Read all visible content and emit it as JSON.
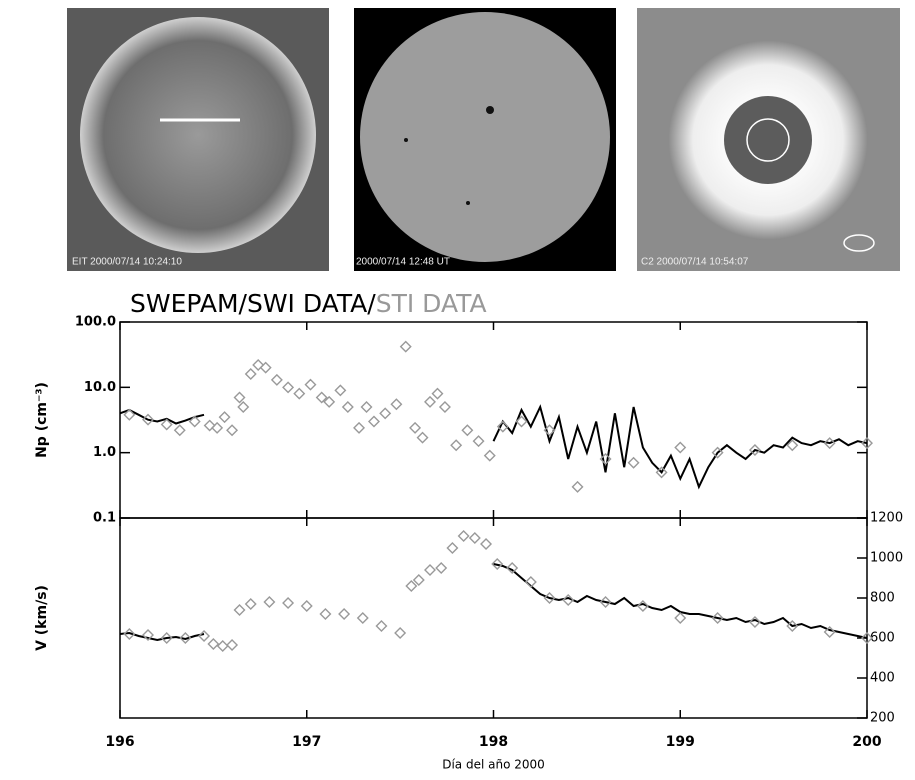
{
  "images": [
    {
      "caption": "EIT 2000/07/14 10:24:10"
    },
    {
      "caption": "2000/07/14 12:48 UT"
    },
    {
      "caption": "C2 2000/07/14 10:54:07"
    }
  ],
  "chart_data": [
    {
      "type": "line",
      "y_label": "Np (cm⁻³)",
      "log": true,
      "xlim": [
        196,
        200
      ],
      "xticks": [
        196,
        197,
        198,
        199,
        200
      ],
      "ylim": [
        0.1,
        100
      ],
      "yticks": [
        0.1,
        {
          "value": 1,
          "label": "1.0"
        },
        {
          "value": 10,
          "label": "10.0"
        },
        {
          "value": 100,
          "label": "100.0"
        }
      ],
      "series": [
        {
          "name": "SWEPAM/SWI DATA/",
          "color": "#000000",
          "style": "line",
          "x": [
            196.0,
            196.05,
            196.1,
            196.15,
            196.2,
            196.25,
            196.3,
            196.35,
            196.4,
            196.45,
            196.5,
            198.0,
            198.05,
            198.1,
            198.15,
            198.2,
            198.25,
            198.3,
            198.35,
            198.4,
            198.45,
            198.5,
            198.55,
            198.6,
            198.65,
            198.7,
            198.75,
            198.8,
            198.85,
            198.9,
            198.95,
            199.0,
            199.05,
            199.1,
            199.15,
            199.2,
            199.25,
            199.3,
            199.35,
            199.4,
            199.45,
            199.5,
            199.55,
            199.6,
            199.65,
            199.7,
            199.75,
            199.8,
            199.85,
            199.9,
            199.95,
            200.0
          ],
          "values": [
            4,
            4.5,
            3.8,
            3.2,
            3,
            3.3,
            2.8,
            3.1,
            3.5,
            3.8,
            null,
            1.5,
            3,
            2,
            4.5,
            2.5,
            5,
            1.5,
            3.5,
            0.8,
            2.5,
            1,
            3,
            0.5,
            4,
            0.6,
            5,
            1.2,
            0.7,
            0.5,
            0.9,
            0.4,
            0.8,
            0.3,
            0.6,
            1,
            1.3,
            1,
            0.8,
            1.1,
            1.0,
            1.3,
            1.2,
            1.7,
            1.4,
            1.3,
            1.5,
            1.4,
            1.6,
            1.3,
            1.5,
            1.4
          ]
        },
        {
          "name": "STI DATA",
          "color": "#999999",
          "style": "diamond",
          "x": [
            196.05,
            196.15,
            196.25,
            196.32,
            196.4,
            196.48,
            196.52,
            196.56,
            196.6,
            196.64,
            196.66,
            196.7,
            196.74,
            196.78,
            196.84,
            196.9,
            196.96,
            197.02,
            197.08,
            197.12,
            197.18,
            197.22,
            197.28,
            197.32,
            197.36,
            197.42,
            197.48,
            197.53,
            197.58,
            197.62,
            197.66,
            197.7,
            197.74,
            197.8,
            197.86,
            197.92,
            197.98,
            198.05,
            198.15,
            198.3,
            198.45,
            198.6,
            198.75,
            198.9,
            199.0,
            199.2,
            199.4,
            199.6,
            199.8,
            200.0
          ],
          "values": [
            3.8,
            3.2,
            2.7,
            2.2,
            3.0,
            2.6,
            2.4,
            3.5,
            2.2,
            7,
            5,
            16,
            22,
            20,
            13,
            10,
            8,
            11,
            7,
            6,
            9,
            5,
            2.4,
            5,
            3,
            4,
            5.5,
            42,
            2.4,
            1.7,
            6,
            8,
            5,
            1.3,
            2.2,
            1.5,
            0.9,
            2.5,
            3,
            2.2,
            0.3,
            0.8,
            0.7,
            0.5,
            1.2,
            1.0,
            1.1,
            1.3,
            1.4,
            1.4
          ]
        }
      ]
    },
    {
      "type": "line",
      "y_label": "V (km/s)",
      "x_label": "Día del año 2000",
      "xlim": [
        196,
        200
      ],
      "xticks": [
        196,
        197,
        198,
        199,
        200
      ],
      "y2lim": [
        200,
        1200
      ],
      "y2ticks": [
        200,
        400,
        600,
        800,
        1000,
        1200
      ],
      "series": [
        {
          "color": "#000000",
          "style": "line",
          "axis": "y2",
          "x": [
            196.0,
            196.05,
            196.1,
            196.15,
            196.2,
            196.25,
            196.3,
            196.35,
            196.4,
            196.45,
            196.5,
            198.0,
            198.05,
            198.1,
            198.15,
            198.2,
            198.25,
            198.3,
            198.35,
            198.4,
            198.45,
            198.5,
            198.55,
            198.6,
            198.65,
            198.7,
            198.75,
            198.8,
            198.85,
            198.9,
            198.95,
            199.0,
            199.05,
            199.1,
            199.15,
            199.2,
            199.25,
            199.3,
            199.35,
            199.4,
            199.45,
            199.5,
            199.55,
            199.6,
            199.65,
            199.7,
            199.75,
            199.8,
            199.85,
            199.9,
            199.95,
            200.0
          ],
          "values": [
            620,
            625,
            610,
            600,
            590,
            600,
            605,
            595,
            610,
            620,
            null,
            970,
            960,
            940,
            900,
            860,
            820,
            800,
            790,
            800,
            780,
            810,
            790,
            780,
            770,
            800,
            760,
            770,
            750,
            740,
            760,
            730,
            720,
            720,
            710,
            700,
            690,
            700,
            680,
            690,
            670,
            680,
            700,
            660,
            670,
            650,
            660,
            640,
            630,
            620,
            610,
            600
          ]
        },
        {
          "color": "#999999",
          "style": "diamond",
          "axis": "y2",
          "x": [
            196.05,
            196.15,
            196.25,
            196.35,
            196.45,
            196.5,
            196.55,
            196.6,
            196.64,
            196.7,
            196.8,
            196.9,
            197.0,
            197.1,
            197.2,
            197.3,
            197.4,
            197.5,
            197.56,
            197.6,
            197.66,
            197.72,
            197.78,
            197.84,
            197.9,
            197.96,
            198.02,
            198.1,
            198.2,
            198.3,
            198.4,
            198.6,
            198.8,
            199.0,
            199.2,
            199.4,
            199.6,
            199.8,
            200.0
          ],
          "values": [
            620,
            615,
            600,
            600,
            610,
            570,
            560,
            565,
            740,
            770,
            780,
            775,
            760,
            720,
            720,
            700,
            660,
            625,
            860,
            890,
            940,
            950,
            1050,
            1110,
            1100,
            1070,
            970,
            950,
            880,
            800,
            790,
            780,
            760,
            700,
            700,
            680,
            660,
            630,
            600
          ]
        }
      ]
    }
  ]
}
